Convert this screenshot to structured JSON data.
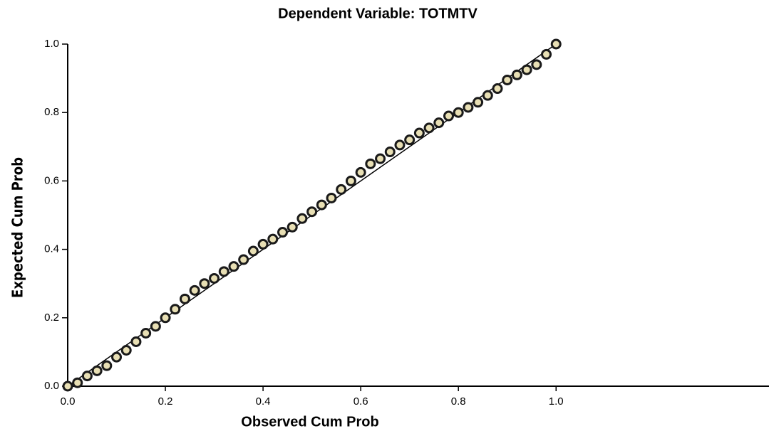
{
  "chart_data": {
    "type": "scatter",
    "title": "Dependent Variable: TOTMTV",
    "xlabel": "Observed Cum Prob",
    "ylabel": "Expected Cum Prob",
    "xlim": [
      0,
      1.436
    ],
    "ylim": [
      0,
      1
    ],
    "xticks": [
      {
        "value": 0,
        "label": "0.0"
      },
      0.2,
      0.4,
      0.6,
      0.8,
      {
        "value": 1,
        "label": "1.0"
      }
    ],
    "yticks": [
      {
        "value": 0,
        "label": "0.0"
      },
      0.2,
      0.4,
      0.6,
      0.8,
      {
        "value": 1,
        "label": "1.0"
      }
    ],
    "grid": false,
    "color": "#e8dfb4",
    "edge_color": "#1a1a1a",
    "reference_line": {
      "x": [
        0,
        1
      ],
      "y": [
        0,
        1
      ]
    },
    "x": [
      0,
      0.02,
      0.04,
      0.06,
      0.08,
      0.1,
      0.12,
      0.14,
      0.16,
      0.18,
      0.2,
      0.22,
      0.24,
      0.26,
      0.28,
      0.3,
      0.32,
      0.34,
      0.36,
      0.38,
      0.4,
      0.42,
      0.44,
      0.46,
      0.48,
      0.5,
      0.52,
      0.54,
      0.56,
      0.58,
      0.6,
      0.62,
      0.64,
      0.66,
      0.68,
      0.7,
      0.72,
      0.74,
      0.76,
      0.78,
      0.8,
      0.82,
      0.84,
      0.86,
      0.88,
      0.9,
      0.92,
      0.94,
      0.96,
      0.98,
      1
    ],
    "values": [
      0,
      0.01,
      0.03,
      0.045,
      0.06,
      0.085,
      0.105,
      0.13,
      0.155,
      0.175,
      0.2,
      0.225,
      0.255,
      0.28,
      0.3,
      0.315,
      0.335,
      0.35,
      0.37,
      0.395,
      0.415,
      0.43,
      0.45,
      0.465,
      0.49,
      0.51,
      0.53,
      0.55,
      0.575,
      0.6,
      0.625,
      0.65,
      0.665,
      0.685,
      0.705,
      0.72,
      0.74,
      0.755,
      0.77,
      0.79,
      0.8,
      0.815,
      0.83,
      0.85,
      0.87,
      0.895,
      0.91,
      0.925,
      0.94,
      0.97,
      1
    ]
  }
}
